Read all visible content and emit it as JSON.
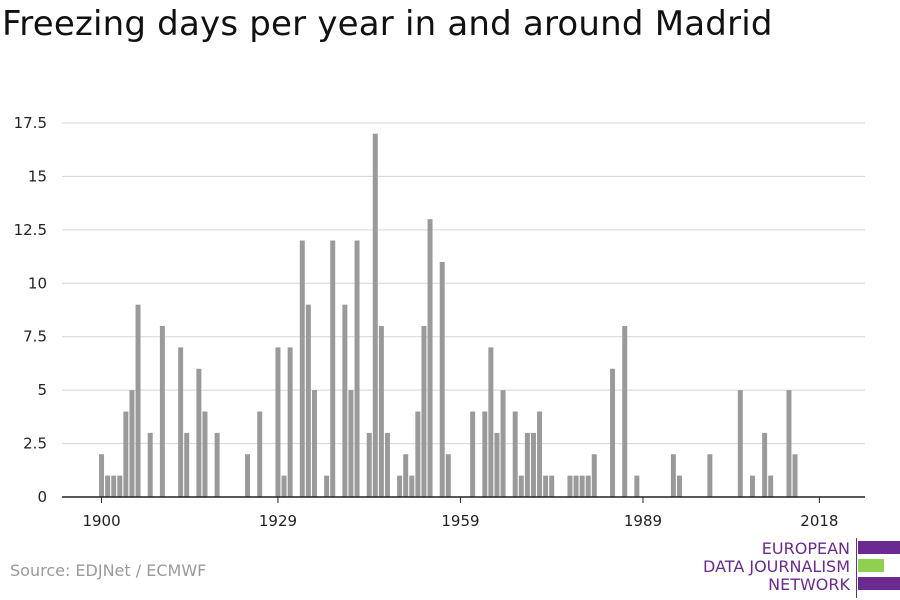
{
  "title": "Freezing days per year in and around Madrid",
  "source": "Source: EDJNet / ECMWF",
  "logo": {
    "lines": [
      "EUROPEAN",
      "DATA JOURNALISM",
      "NETWORK"
    ],
    "colors": [
      "#6b2a8f",
      "#8fd14f",
      "#6b2a8f"
    ]
  },
  "chart_data": {
    "type": "bar",
    "title": "Freezing days per year in and around Madrid",
    "xlabel": "",
    "ylabel": "",
    "x": [
      1900,
      1901,
      1902,
      1903,
      1904,
      1905,
      1906,
      1907,
      1908,
      1909,
      1910,
      1911,
      1912,
      1913,
      1914,
      1915,
      1916,
      1917,
      1918,
      1919,
      1920,
      1921,
      1922,
      1923,
      1924,
      1925,
      1926,
      1927,
      1928,
      1929,
      1930,
      1931,
      1932,
      1933,
      1934,
      1935,
      1936,
      1937,
      1938,
      1939,
      1940,
      1941,
      1942,
      1943,
      1944,
      1945,
      1946,
      1947,
      1948,
      1949,
      1950,
      1951,
      1952,
      1953,
      1954,
      1955,
      1956,
      1957,
      1958,
      1959,
      1960,
      1961,
      1962,
      1963,
      1964,
      1965,
      1966,
      1967,
      1968,
      1969,
      1970,
      1971,
      1972,
      1973,
      1974,
      1975,
      1976,
      1977,
      1978,
      1979,
      1980,
      1981,
      1982,
      1983,
      1984,
      1985,
      1986,
      1987,
      1988,
      1989,
      1990,
      1991,
      1992,
      1993,
      1994,
      1995,
      1996,
      1997,
      1998,
      1999,
      2000,
      2001,
      2002,
      2003,
      2004,
      2005,
      2006,
      2007,
      2008,
      2009,
      2010,
      2011,
      2012,
      2013,
      2014,
      2015,
      2016,
      2017,
      2018
    ],
    "values": [
      2,
      1,
      1,
      1,
      4,
      5,
      9,
      0,
      3,
      0,
      8,
      0,
      0,
      7,
      3,
      0,
      6,
      4,
      0,
      3,
      0,
      0,
      0,
      0,
      2,
      0,
      4,
      0,
      0,
      7,
      1,
      7,
      0,
      12,
      9,
      5,
      0,
      1,
      12,
      0,
      9,
      5,
      12,
      0,
      3,
      17,
      8,
      3,
      0,
      1,
      2,
      1,
      4,
      8,
      13,
      0,
      11,
      2,
      0,
      0,
      0,
      4,
      0,
      4,
      7,
      3,
      5,
      0,
      4,
      1,
      3,
      3,
      4,
      1,
      1,
      0,
      0,
      1,
      1,
      1,
      1,
      2,
      0,
      0,
      6,
      0,
      8,
      0,
      1,
      0,
      0,
      0,
      0,
      0,
      2,
      1,
      0,
      0,
      0,
      0,
      2,
      0,
      0,
      0,
      0,
      5,
      0,
      1,
      0,
      3,
      1,
      0,
      0,
      5,
      2,
      0,
      0,
      0,
      0
    ],
    "ylim": [
      0,
      17.5
    ],
    "yticks": [
      "0",
      "2.5",
      "5",
      "7.5",
      "10",
      "12.5",
      "15",
      "17.5"
    ],
    "xticks": [
      "1900",
      "1929",
      "1959",
      "1989",
      "2018"
    ],
    "grid": true,
    "bar_color": "#9a9a9a"
  }
}
